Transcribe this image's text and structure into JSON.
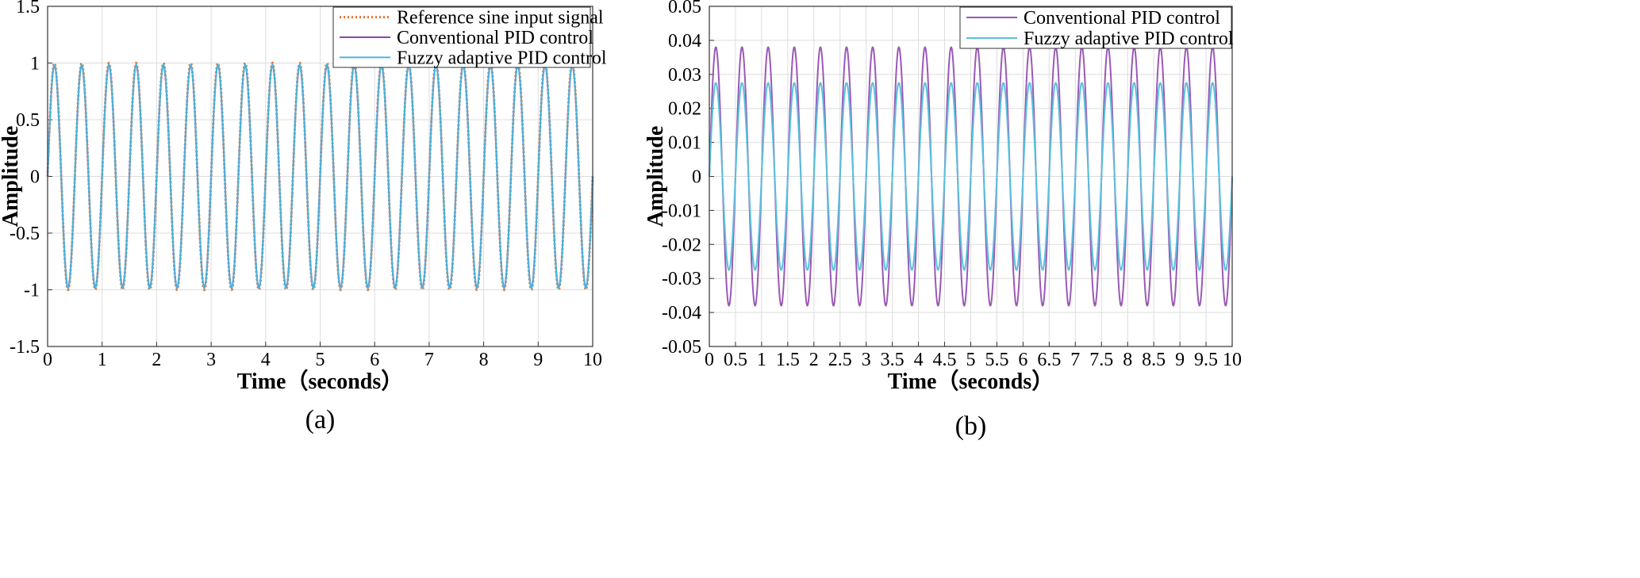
{
  "chart_data": [
    {
      "type": "line",
      "panel_label": "(a)",
      "title": "",
      "xlabel": "Time（seconds）",
      "ylabel": "Amplitude",
      "xlim": [
        0,
        10
      ],
      "ylim": [
        -1.5,
        1.5
      ],
      "xticks": [
        "0",
        "1",
        "2",
        "3",
        "4",
        "5",
        "6",
        "7",
        "8",
        "9",
        "10"
      ],
      "yticks": [
        "1.5",
        "1",
        "0.5",
        "0",
        "-0.5",
        "-1",
        "-1.5"
      ],
      "grid": true,
      "legend_position": "top-right",
      "series": [
        {
          "name": "Reference sine input signal",
          "color": "#e8702a",
          "style": "dotted",
          "function": "sine",
          "amplitude": 1.0,
          "frequency_hz": 2.0
        },
        {
          "name": "Conventional PID control",
          "color": "#8e44ad",
          "style": "solid",
          "function": "sine",
          "amplitude": 0.98,
          "frequency_hz": 2.0
        },
        {
          "name": "Fuzzy adaptive PID control",
          "color": "#4fb3d9",
          "style": "solid",
          "function": "sine",
          "amplitude": 0.985,
          "frequency_hz": 2.0
        }
      ]
    },
    {
      "type": "line",
      "panel_label": "(b)",
      "title": "",
      "xlabel": "Time（seconds）",
      "ylabel": "Amplitude",
      "xlim": [
        0,
        10
      ],
      "ylim": [
        -0.05,
        0.05
      ],
      "xticks": [
        "0",
        "0.5",
        "1",
        "1.5",
        "2",
        "2.5",
        "3",
        "3.5",
        "4",
        "4.5",
        "5",
        "5.5",
        "6",
        "6.5",
        "7",
        "7.5",
        "8",
        "8.5",
        "9",
        "9.5",
        "10"
      ],
      "yticks": [
        "0.05",
        "0.04",
        "0.03",
        "0.02",
        "0.01",
        "0",
        "-0.01",
        "-0.02",
        "-0.03",
        "-0.04",
        "-0.05"
      ],
      "grid": true,
      "legend_position": "top-right",
      "series": [
        {
          "name": "Conventional PID control",
          "color": "#9b59b6",
          "style": "solid",
          "function": "sine",
          "amplitude": 0.038,
          "frequency_hz": 2.0
        },
        {
          "name": "Fuzzy adaptive PID control",
          "color": "#5bc0de",
          "style": "solid",
          "function": "sine",
          "amplitude": 0.0275,
          "frequency_hz": 2.0
        }
      ]
    }
  ]
}
